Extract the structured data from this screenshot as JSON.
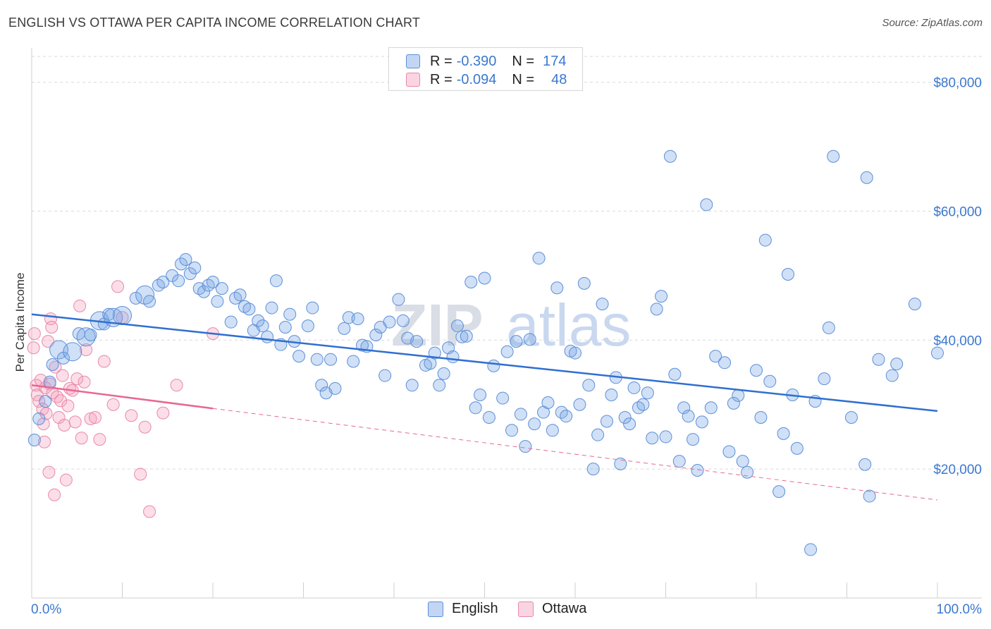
{
  "title": "ENGLISH VS OTTAWA PER CAPITA INCOME CORRELATION CHART",
  "source": "Source: ZipAtlas.com",
  "colors": {
    "english_fill": "rgba(120,165,230,0.35)",
    "english_stroke": "#5d8fd8",
    "english_line": "#2f6fd0",
    "ottawa_fill": "rgba(245,160,190,0.35)",
    "ottawa_stroke": "#e889aa",
    "ottawa_line": "#e8688f",
    "axis_text": "#3b78d0",
    "grid": "#d9d9d9"
  },
  "legend": {
    "rows": [
      {
        "r_label": "R =",
        "r_value": "-0.390",
        "n_label": "N =",
        "n_value": "174"
      },
      {
        "r_label": "R =",
        "r_value": "-0.094",
        "n_label": "N =",
        "n_value": "48"
      }
    ]
  },
  "bottom_legend": {
    "english": "English",
    "ottawa": "Ottawa"
  },
  "watermark": {
    "zip": "ZIP",
    "atlas": "atlas"
  },
  "chart_data": {
    "type": "scatter",
    "title": "ENGLISH VS OTTAWA PER CAPITA INCOME CORRELATION CHART",
    "xlabel": "",
    "ylabel": "Per Capita Income",
    "xlim": [
      0,
      100
    ],
    "ylim": [
      0,
      84000
    ],
    "x_tick_labels": [
      "0.0%",
      "100.0%"
    ],
    "y_ticks": [
      20000,
      40000,
      60000,
      80000
    ],
    "y_tick_labels": [
      "$20,000",
      "$40,000",
      "$60,000",
      "$80,000"
    ],
    "legend_position": "top-center",
    "series": [
      {
        "name": "English",
        "R": -0.39,
        "N": 174,
        "trend": {
          "x0": 0,
          "y0": 44000,
          "x1": 100,
          "y1": 29000
        },
        "points": [
          [
            0.3,
            24500
          ],
          [
            0.8,
            27800
          ],
          [
            1.5,
            30500
          ],
          [
            2.0,
            33500
          ],
          [
            2.3,
            36200
          ],
          [
            3.0,
            38500
          ],
          [
            3.5,
            37200
          ],
          [
            4.5,
            38200
          ],
          [
            5.2,
            41000
          ],
          [
            6.0,
            40500
          ],
          [
            6.5,
            40800
          ],
          [
            7.5,
            43000
          ],
          [
            8.0,
            42500
          ],
          [
            8.5,
            44000
          ],
          [
            9.0,
            43500
          ],
          [
            10.0,
            43800
          ],
          [
            11.5,
            46500
          ],
          [
            12.5,
            47000
          ],
          [
            13.0,
            46000
          ],
          [
            14.0,
            48500
          ],
          [
            14.5,
            49000
          ],
          [
            15.5,
            50000
          ],
          [
            16.2,
            49200
          ],
          [
            16.5,
            51800
          ],
          [
            17.0,
            52500
          ],
          [
            17.5,
            50300
          ],
          [
            18.0,
            51200
          ],
          [
            18.5,
            48000
          ],
          [
            19.0,
            47500
          ],
          [
            19.5,
            48500
          ],
          [
            20.0,
            49000
          ],
          [
            20.5,
            46000
          ],
          [
            21.0,
            48000
          ],
          [
            22.0,
            42800
          ],
          [
            22.5,
            46500
          ],
          [
            23.0,
            47000
          ],
          [
            23.5,
            45200
          ],
          [
            24.0,
            44800
          ],
          [
            24.5,
            41500
          ],
          [
            25.0,
            43000
          ],
          [
            25.5,
            42200
          ],
          [
            26.0,
            40500
          ],
          [
            26.5,
            45000
          ],
          [
            27.0,
            49200
          ],
          [
            27.5,
            39300
          ],
          [
            28.0,
            42000
          ],
          [
            28.5,
            44000
          ],
          [
            29.0,
            39800
          ],
          [
            29.5,
            37500
          ],
          [
            30.5,
            42200
          ],
          [
            31.0,
            45000
          ],
          [
            31.5,
            37000
          ],
          [
            32.0,
            33000
          ],
          [
            32.5,
            31800
          ],
          [
            33.0,
            37000
          ],
          [
            33.5,
            32500
          ],
          [
            34.5,
            41800
          ],
          [
            35.0,
            43500
          ],
          [
            35.5,
            36700
          ],
          [
            36.0,
            43300
          ],
          [
            36.5,
            39200
          ],
          [
            37.0,
            39000
          ],
          [
            38.0,
            40800
          ],
          [
            38.5,
            42000
          ],
          [
            39.0,
            34500
          ],
          [
            39.5,
            42800
          ],
          [
            40.5,
            46300
          ],
          [
            41.0,
            43000
          ],
          [
            41.5,
            40300
          ],
          [
            42.0,
            33000
          ],
          [
            42.5,
            39800
          ],
          [
            43.5,
            36100
          ],
          [
            44.0,
            36400
          ],
          [
            44.5,
            38000
          ],
          [
            45.0,
            33000
          ],
          [
            45.5,
            34800
          ],
          [
            46.0,
            38800
          ],
          [
            46.5,
            37400
          ],
          [
            47.0,
            42200
          ],
          [
            47.5,
            40500
          ],
          [
            48.0,
            40600
          ],
          [
            48.5,
            49000
          ],
          [
            49.0,
            29500
          ],
          [
            49.5,
            31500
          ],
          [
            50.0,
            49600
          ],
          [
            50.5,
            28000
          ],
          [
            51.0,
            36000
          ],
          [
            52.0,
            31000
          ],
          [
            52.5,
            38200
          ],
          [
            53.0,
            26000
          ],
          [
            53.5,
            39800
          ],
          [
            54.0,
            28500
          ],
          [
            54.5,
            23500
          ],
          [
            55.0,
            40100
          ],
          [
            55.5,
            27000
          ],
          [
            56.0,
            52700
          ],
          [
            56.5,
            28800
          ],
          [
            57.0,
            30300
          ],
          [
            57.5,
            26000
          ],
          [
            58.0,
            48100
          ],
          [
            58.5,
            28800
          ],
          [
            59.0,
            28200
          ],
          [
            59.5,
            38300
          ],
          [
            60.0,
            38000
          ],
          [
            60.5,
            30000
          ],
          [
            61.0,
            48800
          ],
          [
            61.5,
            33000
          ],
          [
            62.0,
            20000
          ],
          [
            62.5,
            25300
          ],
          [
            63.0,
            45600
          ],
          [
            63.5,
            27400
          ],
          [
            64.0,
            31500
          ],
          [
            64.5,
            34200
          ],
          [
            65.0,
            20800
          ],
          [
            65.5,
            28000
          ],
          [
            66.0,
            27000
          ],
          [
            66.5,
            32600
          ],
          [
            67.0,
            29500
          ],
          [
            67.5,
            30000
          ],
          [
            68.0,
            31800
          ],
          [
            68.5,
            24800
          ],
          [
            69.0,
            44800
          ],
          [
            69.5,
            46800
          ],
          [
            70.0,
            25000
          ],
          [
            71.0,
            34700
          ],
          [
            71.5,
            21200
          ],
          [
            72.0,
            29500
          ],
          [
            72.5,
            28200
          ],
          [
            73.0,
            24600
          ],
          [
            73.5,
            19800
          ],
          [
            74.0,
            27300
          ],
          [
            74.5,
            61000
          ],
          [
            75.0,
            29500
          ],
          [
            75.5,
            37500
          ],
          [
            76.5,
            36500
          ],
          [
            77.0,
            22700
          ],
          [
            77.5,
            30200
          ],
          [
            78.0,
            31400
          ],
          [
            78.5,
            21200
          ],
          [
            79.0,
            19500
          ],
          [
            80.0,
            35300
          ],
          [
            80.5,
            28000
          ],
          [
            81.0,
            55500
          ],
          [
            81.5,
            33600
          ],
          [
            82.5,
            16500
          ],
          [
            83.0,
            25500
          ],
          [
            83.5,
            50200
          ],
          [
            84.0,
            31500
          ],
          [
            84.5,
            23200
          ],
          [
            86.0,
            7500
          ],
          [
            86.5,
            30500
          ],
          [
            87.5,
            34000
          ],
          [
            88.0,
            41900
          ],
          [
            90.5,
            28000
          ],
          [
            92.0,
            20700
          ],
          [
            92.5,
            15800
          ],
          [
            93.5,
            37000
          ],
          [
            95.5,
            36300
          ],
          [
            97.5,
            45600
          ],
          [
            70.5,
            68500
          ],
          [
            88.5,
            68500
          ],
          [
            92.2,
            65200
          ],
          [
            95.0,
            34500
          ],
          [
            100.0,
            38000
          ]
        ],
        "sizes": {
          "large": [
            [
              3.0,
              38500
            ],
            [
              4.5,
              38200
            ],
            [
              6.0,
              40500
            ],
            [
              7.5,
              43000
            ],
            [
              9.0,
              43500
            ],
            [
              10.0,
              43800
            ],
            [
              12.5,
              47000
            ]
          ]
        }
      },
      {
        "name": "Ottawa",
        "R": -0.094,
        "N": 48,
        "trend_solid": {
          "x0": 0,
          "y0": 33000,
          "x1": 20,
          "y1": 29400
        },
        "trend_dashed": {
          "x0": 20,
          "y0": 29400,
          "x1": 100,
          "y1": 15200
        },
        "points": [
          [
            0.2,
            38800
          ],
          [
            0.3,
            41000
          ],
          [
            0.5,
            33000
          ],
          [
            0.6,
            31500
          ],
          [
            0.8,
            30500
          ],
          [
            1.0,
            33800
          ],
          [
            1.2,
            29300
          ],
          [
            1.3,
            27000
          ],
          [
            1.4,
            24200
          ],
          [
            1.5,
            32600
          ],
          [
            1.6,
            28600
          ],
          [
            1.8,
            39800
          ],
          [
            1.9,
            19500
          ],
          [
            2.0,
            33200
          ],
          [
            2.1,
            43300
          ],
          [
            2.2,
            42000
          ],
          [
            2.3,
            31800
          ],
          [
            2.5,
            16000
          ],
          [
            2.6,
            35800
          ],
          [
            2.8,
            31200
          ],
          [
            3.0,
            28000
          ],
          [
            3.2,
            30600
          ],
          [
            3.4,
            34500
          ],
          [
            3.6,
            26800
          ],
          [
            3.8,
            18300
          ],
          [
            4.0,
            29800
          ],
          [
            4.2,
            32500
          ],
          [
            4.5,
            32200
          ],
          [
            4.8,
            27300
          ],
          [
            5.0,
            34000
          ],
          [
            5.3,
            45300
          ],
          [
            5.5,
            24800
          ],
          [
            6.0,
            38500
          ],
          [
            6.5,
            27800
          ],
          [
            7.0,
            28000
          ],
          [
            7.5,
            24600
          ],
          [
            8.0,
            36700
          ],
          [
            9.0,
            30000
          ],
          [
            9.5,
            48300
          ],
          [
            10.0,
            43500
          ],
          [
            11.0,
            28300
          ],
          [
            12.0,
            19200
          ],
          [
            12.5,
            26500
          ],
          [
            13.0,
            13400
          ],
          [
            14.5,
            28700
          ],
          [
            16.0,
            33000
          ],
          [
            20.0,
            41000
          ],
          [
            5.8,
            33500
          ]
        ]
      }
    ]
  }
}
